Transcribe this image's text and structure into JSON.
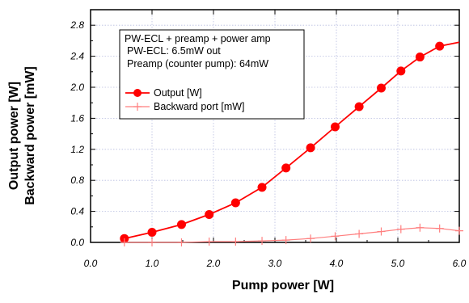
{
  "chart_data": {
    "type": "line",
    "xlabel": "Pump power [W]",
    "ylabel_lines": [
      "Output power [W]",
      "Backward power [mW]"
    ],
    "xlim": [
      0.0,
      6.0
    ],
    "ylim": [
      0.0,
      3.0
    ],
    "x_ticks": [
      0.0,
      1.0,
      2.0,
      3.0,
      4.0,
      5.0,
      6.0
    ],
    "x_tick_labels": [
      "0.0",
      "1.0",
      "2.0",
      "3.0",
      "4.0",
      "5.0",
      "6.0"
    ],
    "y_ticks": [
      0.0,
      0.4,
      0.8,
      1.2,
      1.6,
      2.0,
      2.4,
      2.8
    ],
    "y_tick_labels": [
      "0.0",
      "0.4",
      "0.8",
      "1.2",
      "1.6",
      "2.0",
      "2.4",
      "2.8"
    ],
    "grid": true,
    "legend_position": "upper-left",
    "annotation_lines": [
      "PW-ECL + preamp + power amp",
      "PW-ECL: 6.5mW out",
      "Preamp (counter pump): 64mW"
    ],
    "series": [
      {
        "name": "Output [W]",
        "marker": "circle",
        "color": "#ff0000",
        "x": [
          0.55,
          1.0,
          1.48,
          1.93,
          2.36,
          2.79,
          3.18,
          3.58,
          3.98,
          4.37,
          4.73,
          5.05,
          5.36,
          5.68,
          6.0
        ],
        "y": [
          0.05,
          0.13,
          0.23,
          0.36,
          0.51,
          0.71,
          0.96,
          1.22,
          1.49,
          1.75,
          1.99,
          2.21,
          2.39,
          2.53,
          2.58
        ]
      },
      {
        "name": "Backward port [mW]",
        "marker": "plus",
        "color": "#ff7f7f",
        "x": [
          0.55,
          1.0,
          1.48,
          1.93,
          2.36,
          2.79,
          3.18,
          3.58,
          3.98,
          4.37,
          4.73,
          5.05,
          5.36,
          5.68,
          6.0
        ],
        "y": [
          0.0,
          0.0,
          0.0,
          0.01,
          0.01,
          0.02,
          0.03,
          0.05,
          0.08,
          0.11,
          0.14,
          0.17,
          0.19,
          0.18,
          0.15
        ]
      }
    ]
  }
}
